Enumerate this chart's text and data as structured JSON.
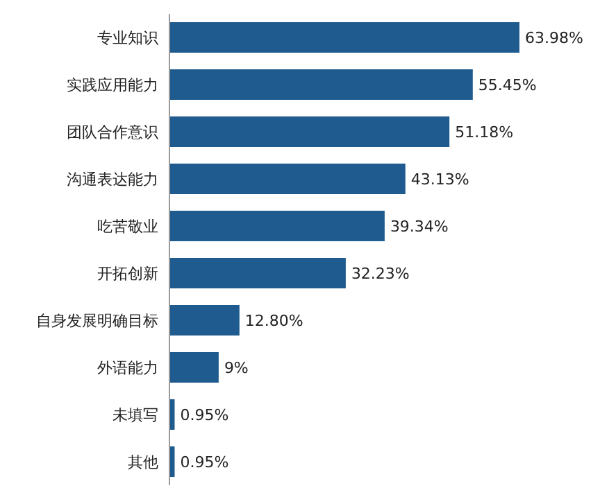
{
  "chart_data": {
    "type": "bar",
    "orientation": "horizontal",
    "categories": [
      "专业知识",
      "实践应用能力",
      "团队合作意识",
      "沟通表达能力",
      "吃苦敬业",
      "开拓创新",
      "自身发展明确目标",
      "外语能力",
      "未填写",
      "其他"
    ],
    "values": [
      63.98,
      55.45,
      51.18,
      43.13,
      39.34,
      32.23,
      12.8,
      9,
      0.95,
      0.95
    ],
    "value_labels": [
      "63.98%",
      "55.45%",
      "51.18%",
      "43.13%",
      "39.34%",
      "32.23%",
      "12.80%",
      "9%",
      "0.95%",
      "0.95%"
    ],
    "color": "#1f5b8e",
    "grid": false,
    "legend": false
  }
}
